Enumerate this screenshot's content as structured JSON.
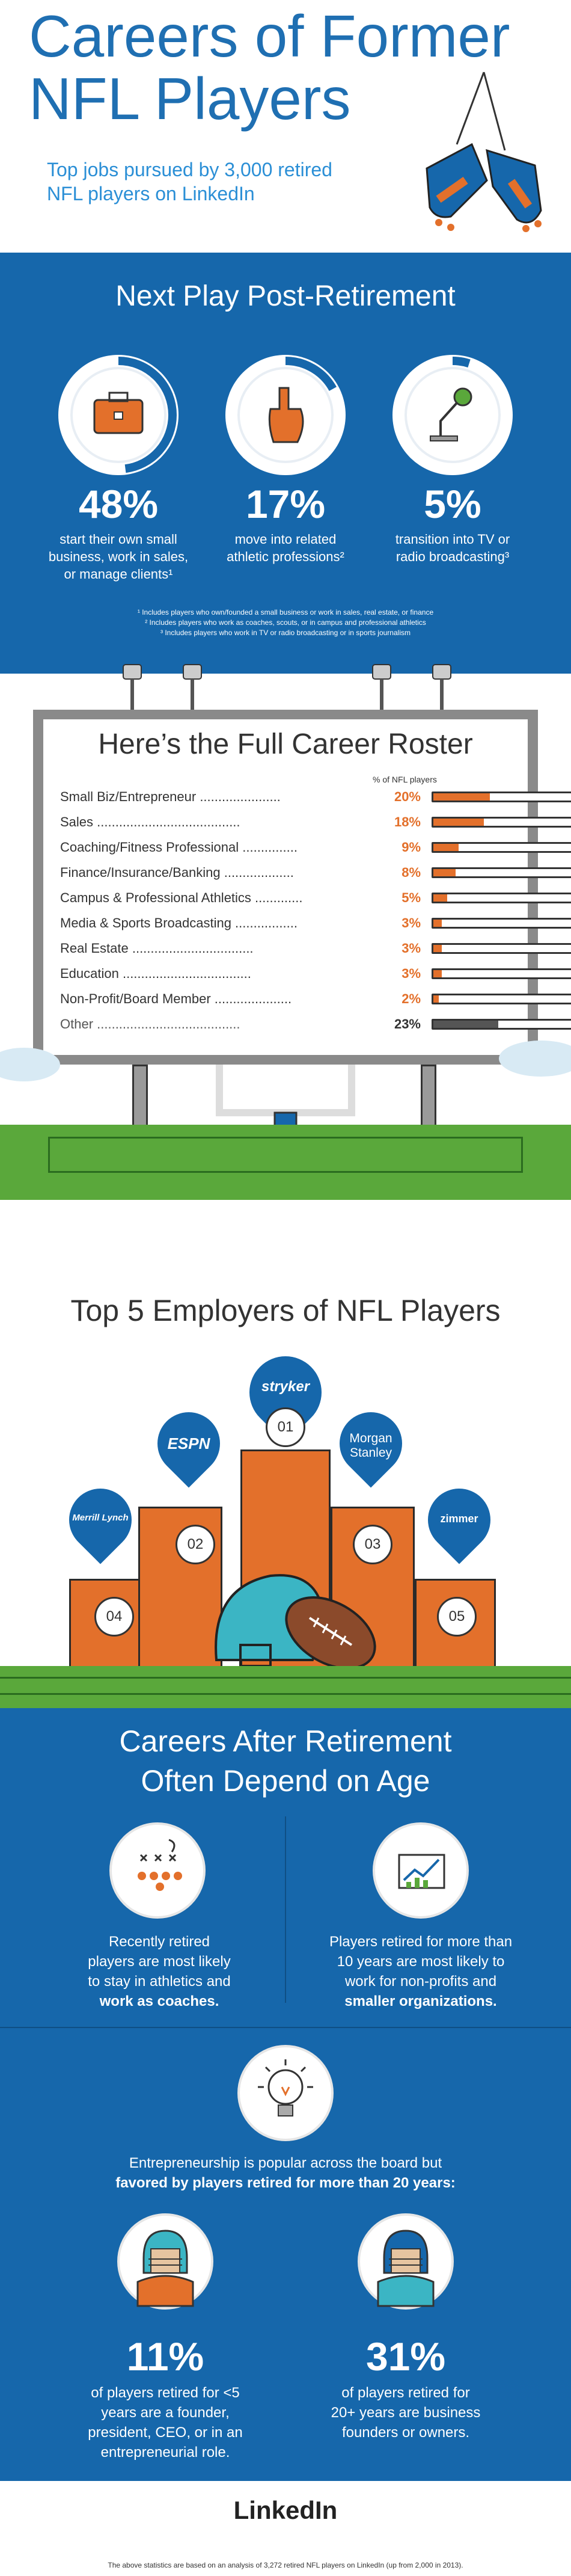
{
  "header": {
    "title_line1": "Careers of Former",
    "title_line2": "NFL Players",
    "subtitle_line1": "Top jobs pursued by 3,000 retired",
    "subtitle_line2": "NFL players on LinkedIn"
  },
  "post_retirement": {
    "title": "Next Play Post-Retirement",
    "stats": [
      {
        "pct": "48%",
        "line1": "start their own small",
        "line2": "business, work in sales,",
        "line3": "or manage clients¹",
        "icon": "briefcase-icon"
      },
      {
        "pct": "17%",
        "line1": "move into related",
        "line2": "athletic professions²",
        "line3": "",
        "icon": "foam-finger-icon"
      },
      {
        "pct": "5%",
        "line1": "transition into TV or",
        "line2": "radio broadcasting³",
        "line3": "",
        "icon": "microphone-icon"
      }
    ],
    "footnotes": [
      "¹ Includes players who own/founded a small business or work in sales, real estate, or finance",
      "² Includes players who work as coaches, scouts, or in campus and professional athletics",
      "³ Includes players who work in TV or radio broadcasting or in sports journalism"
    ]
  },
  "roster": {
    "title": "Here’s the Full Career Roster",
    "column_label": "% of NFL players"
  },
  "chart_data": {
    "type": "bar",
    "title": "Here’s the Full Career Roster",
    "xlabel": "% of NFL players",
    "categories": [
      "Small Biz/Entrepreneur",
      "Sales",
      "Coaching/Fitness Professional",
      "Finance/Insurance/Banking",
      "Campus & Professional Athletics",
      "Media & Sports Broadcasting",
      "Real Estate",
      "Education",
      "Non-Profit/Board Member",
      "Other"
    ],
    "values": [
      20,
      18,
      9,
      8,
      5,
      3,
      3,
      3,
      2,
      23
    ],
    "labels": [
      "20%",
      "18%",
      "9%",
      "8%",
      "5%",
      "3%",
      "3%",
      "3%",
      "2%",
      "23%"
    ],
    "xlim": [
      0,
      50
    ],
    "bar_color": "#e3702b",
    "other_color": "#555555"
  },
  "employers": {
    "title": "Top 5 Employers of NFL Players",
    "ranks": [
      {
        "num": "01",
        "name": "stryker"
      },
      {
        "num": "02",
        "name": "ESPN"
      },
      {
        "num": "03",
        "name": "Morgan Stanley"
      },
      {
        "num": "04",
        "name": "Merrill Lynch"
      },
      {
        "num": "05",
        "name": "zimmer"
      }
    ]
  },
  "age": {
    "title_line1": "Careers After Retirement",
    "title_line2": "Often Depend on Age",
    "left_text": [
      "Recently retired",
      "players are most likely",
      "to stay in athletics and",
      "work as coaches."
    ],
    "right_text": [
      "Players retired for more than",
      "10 years are most likely to",
      "work for non-profits and",
      "smaller organizations."
    ],
    "entre_line1": "Entrepreneurship is popular across the board but",
    "entre_line2": "favored by players retired for more than 20 years:",
    "stats": [
      {
        "pct": "11%",
        "lines": [
          "of players retired for <5",
          "years are a founder,",
          "president, CEO, or in an",
          "entrepreneurial role."
        ]
      },
      {
        "pct": "31%",
        "lines": [
          "of players retired for",
          "20+ years are business",
          "founders or owners."
        ]
      }
    ]
  },
  "footer": {
    "logo": "LinkedIn",
    "disclaimer": "The above statistics are based on an analysis of 3,272 retired NFL players on LinkedIn (up from 2,000 in 2013)."
  },
  "colors": {
    "blue": "#1667ab",
    "orange": "#e3702b",
    "green": "#5aa83b"
  }
}
